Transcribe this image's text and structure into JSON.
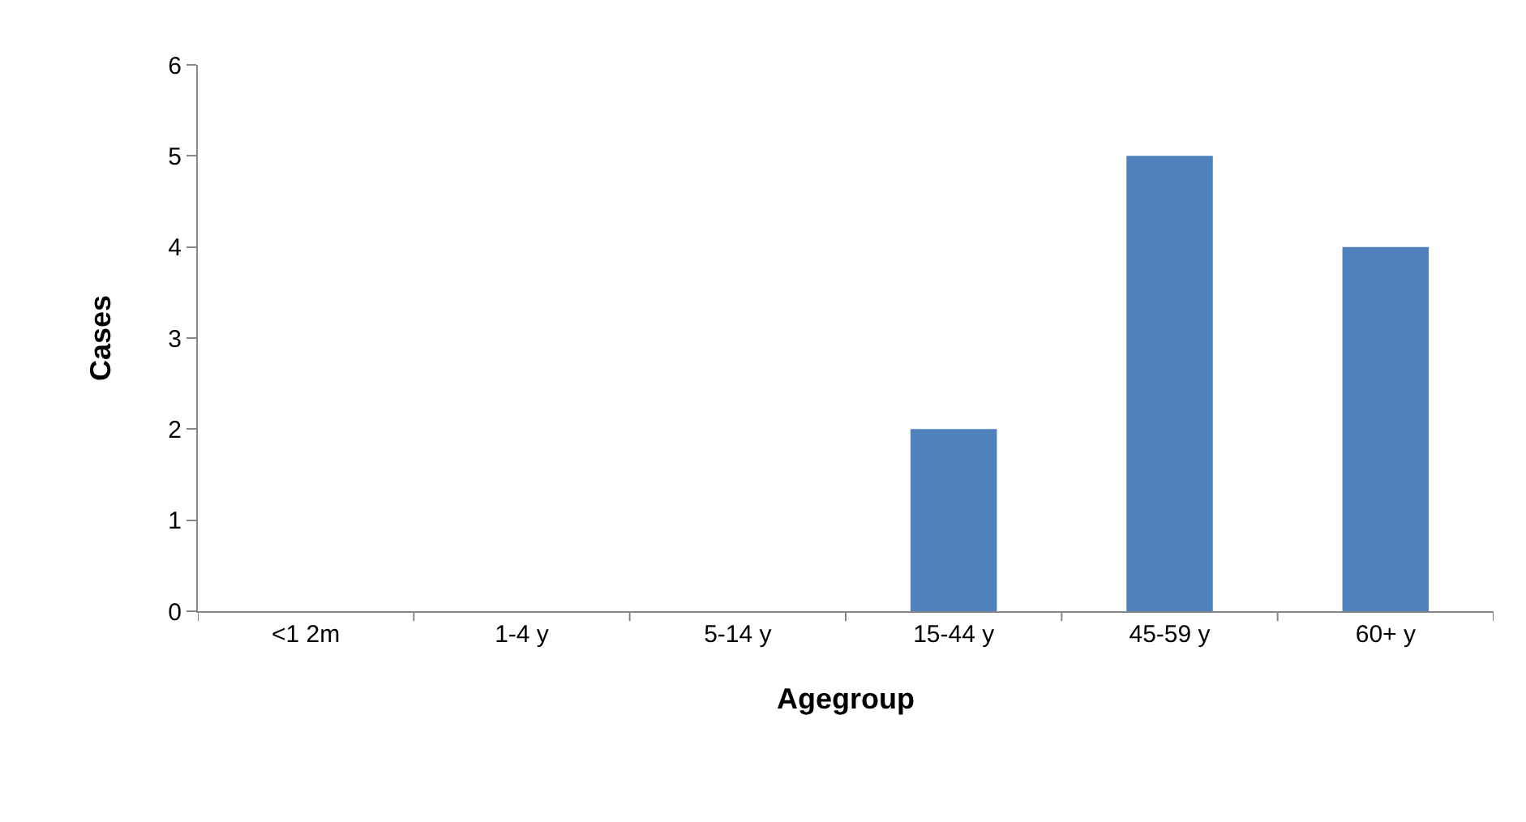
{
  "chart_data": {
    "type": "bar",
    "xlabel": "Agegroup",
    "ylabel": "Cases",
    "categories": [
      "<1 2m",
      "1-4 y",
      "5-14 y",
      "15-44 y",
      "45-59 y",
      "60+ y"
    ],
    "values": [
      0,
      0,
      0,
      2,
      5,
      4
    ],
    "color": "#4f81bd",
    "ylim": [
      0,
      6
    ],
    "yticks": [
      0,
      1,
      2,
      3,
      4,
      5,
      6
    ],
    "grid": false
  }
}
